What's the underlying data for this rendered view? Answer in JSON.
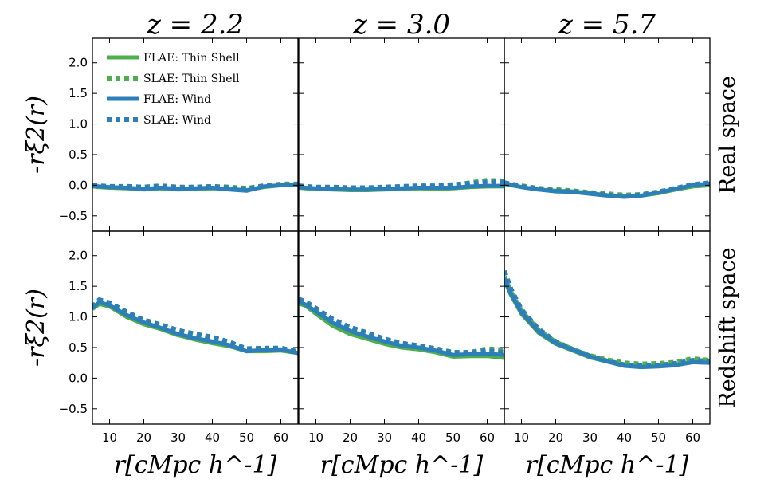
{
  "chart_data": {
    "type": "line",
    "layout": "3 columns x 2 rows, shared axes",
    "column_titles": [
      "z = 2.2",
      "z = 3.0",
      "z = 5.7"
    ],
    "row_labels": [
      "Real space",
      "Redshift space"
    ],
    "xlabel": "r[cMpc h^-1]",
    "ylabel": "-rξ2(r)",
    "xlim": [
      5,
      65
    ],
    "ylim": [
      -0.75,
      2.4
    ],
    "xticks": [
      10,
      20,
      30,
      40,
      50,
      60
    ],
    "xtick_labels": [
      "10",
      "20",
      "30",
      "40",
      "50",
      "60"
    ],
    "yticks": [
      -0.5,
      0.0,
      0.5,
      1.0,
      1.5,
      2.0
    ],
    "ytick_labels": [
      "−0.5",
      "0.0",
      "0.5",
      "1.0",
      "1.5",
      "2.0"
    ],
    "x": [
      5,
      7,
      10,
      15,
      20,
      25,
      30,
      35,
      40,
      45,
      50,
      55,
      60,
      65
    ],
    "legend": [
      {
        "label": "FLAE: Thin Shell",
        "color": "#4daf4a",
        "style": "solid"
      },
      {
        "label": "SLAE: Thin Shell",
        "color": "#4daf4a",
        "style": "dotted"
      },
      {
        "label": "FLAE: Wind",
        "color": "#2c7fb8",
        "style": "solid"
      },
      {
        "label": "SLAE: Wind",
        "color": "#2c7fb8",
        "style": "dotted"
      }
    ],
    "panels": [
      {
        "col": 0,
        "row": 0,
        "legend": true,
        "series": [
          {
            "name": "FLAE: Thin Shell",
            "values": [
              -0.02,
              -0.03,
              -0.04,
              -0.05,
              -0.07,
              -0.05,
              -0.07,
              -0.06,
              -0.05,
              -0.06,
              -0.08,
              -0.03,
              0.0,
              0.01
            ]
          },
          {
            "name": "SLAE: Thin Shell",
            "values": [
              -0.01,
              -0.02,
              -0.03,
              -0.02,
              -0.03,
              -0.02,
              -0.04,
              -0.03,
              -0.02,
              -0.03,
              -0.05,
              -0.01,
              0.02,
              0.02
            ]
          },
          {
            "name": "FLAE: Wind",
            "values": [
              -0.01,
              -0.02,
              -0.03,
              -0.04,
              -0.06,
              -0.04,
              -0.06,
              -0.05,
              -0.04,
              -0.07,
              -0.09,
              -0.02,
              0.0,
              0.0
            ]
          },
          {
            "name": "SLAE: Wind",
            "values": [
              0.0,
              -0.01,
              -0.02,
              -0.02,
              -0.03,
              -0.01,
              -0.03,
              -0.03,
              -0.02,
              -0.04,
              -0.06,
              -0.01,
              0.01,
              0.01
            ]
          }
        ]
      },
      {
        "col": 1,
        "row": 0,
        "legend": false,
        "series": [
          {
            "name": "FLAE: Thin Shell",
            "values": [
              -0.04,
              -0.05,
              -0.06,
              -0.07,
              -0.08,
              -0.08,
              -0.07,
              -0.06,
              -0.05,
              -0.06,
              -0.05,
              -0.03,
              -0.02,
              -0.02
            ]
          },
          {
            "name": "SLAE: Thin Shell",
            "values": [
              -0.02,
              -0.03,
              -0.04,
              -0.05,
              -0.05,
              -0.05,
              -0.04,
              -0.03,
              -0.02,
              -0.02,
              0.0,
              0.04,
              0.08,
              0.07
            ]
          },
          {
            "name": "FLAE: Wind",
            "values": [
              -0.03,
              -0.04,
              -0.05,
              -0.06,
              -0.07,
              -0.07,
              -0.06,
              -0.05,
              -0.04,
              -0.04,
              -0.04,
              -0.02,
              -0.01,
              -0.01
            ]
          },
          {
            "name": "SLAE: Wind",
            "values": [
              -0.01,
              -0.02,
              -0.03,
              -0.03,
              -0.04,
              -0.04,
              -0.03,
              -0.02,
              -0.01,
              -0.01,
              0.01,
              0.03,
              0.05,
              0.05
            ]
          }
        ]
      },
      {
        "col": 2,
        "row": 0,
        "legend": false,
        "series": [
          {
            "name": "FLAE: Thin Shell",
            "values": [
              0.02,
              0.0,
              -0.03,
              -0.07,
              -0.09,
              -0.1,
              -0.13,
              -0.16,
              -0.18,
              -0.17,
              -0.13,
              -0.07,
              -0.02,
              0.0
            ]
          },
          {
            "name": "SLAE: Thin Shell",
            "values": [
              0.03,
              0.02,
              -0.01,
              -0.05,
              -0.07,
              -0.09,
              -0.12,
              -0.14,
              -0.16,
              -0.15,
              -0.11,
              -0.05,
              0.0,
              0.02
            ]
          },
          {
            "name": "FLAE: Wind",
            "values": [
              0.03,
              0.01,
              -0.03,
              -0.07,
              -0.1,
              -0.11,
              -0.14,
              -0.17,
              -0.19,
              -0.17,
              -0.12,
              -0.06,
              0.0,
              0.03
            ]
          },
          {
            "name": "SLAE: Wind",
            "values": [
              0.04,
              0.02,
              -0.02,
              -0.06,
              -0.09,
              -0.1,
              -0.13,
              -0.16,
              -0.18,
              -0.16,
              -0.11,
              -0.05,
              0.01,
              0.04
            ]
          }
        ]
      },
      {
        "col": 0,
        "row": 1,
        "legend": false,
        "series": [
          {
            "name": "FLAE: Thin Shell",
            "values": [
              1.13,
              1.21,
              1.17,
              1.0,
              0.88,
              0.8,
              0.7,
              0.63,
              0.57,
              0.52,
              0.44,
              0.44,
              0.45,
              0.41
            ]
          },
          {
            "name": "SLAE: Thin Shell",
            "values": [
              1.15,
              1.27,
              1.22,
              1.06,
              0.94,
              0.86,
              0.78,
              0.72,
              0.66,
              0.58,
              0.47,
              0.48,
              0.49,
              0.43
            ]
          },
          {
            "name": "FLAE: Wind",
            "values": [
              1.14,
              1.24,
              1.19,
              1.03,
              0.91,
              0.82,
              0.72,
              0.65,
              0.6,
              0.54,
              0.44,
              0.46,
              0.47,
              0.41
            ]
          },
          {
            "name": "SLAE: Wind",
            "values": [
              1.16,
              1.28,
              1.23,
              1.08,
              0.95,
              0.87,
              0.78,
              0.72,
              0.67,
              0.59,
              0.48,
              0.49,
              0.49,
              0.43
            ]
          }
        ]
      },
      {
        "col": 1,
        "row": 1,
        "legend": false,
        "series": [
          {
            "name": "FLAE: Thin Shell",
            "values": [
              1.22,
              1.18,
              1.05,
              0.85,
              0.72,
              0.64,
              0.56,
              0.5,
              0.47,
              0.42,
              0.35,
              0.36,
              0.36,
              0.33
            ]
          },
          {
            "name": "SLAE: Thin Shell",
            "values": [
              1.27,
              1.23,
              1.12,
              0.93,
              0.81,
              0.72,
              0.63,
              0.56,
              0.53,
              0.48,
              0.42,
              0.42,
              0.48,
              0.46
            ]
          },
          {
            "name": "FLAE: Wind",
            "values": [
              1.25,
              1.2,
              1.09,
              0.9,
              0.77,
              0.68,
              0.6,
              0.53,
              0.5,
              0.45,
              0.38,
              0.39,
              0.4,
              0.38
            ]
          },
          {
            "name": "SLAE: Wind",
            "values": [
              1.29,
              1.25,
              1.14,
              0.96,
              0.83,
              0.74,
              0.64,
              0.57,
              0.53,
              0.48,
              0.42,
              0.42,
              0.45,
              0.42
            ]
          }
        ]
      },
      {
        "col": 2,
        "row": 1,
        "legend": false,
        "series": [
          {
            "name": "FLAE: Thin Shell",
            "values": [
              1.6,
              1.35,
              1.05,
              0.74,
              0.56,
              0.45,
              0.34,
              0.27,
              0.21,
              0.19,
              0.2,
              0.22,
              0.26,
              0.25
            ]
          },
          {
            "name": "SLAE: Thin Shell",
            "values": [
              1.66,
              1.4,
              1.1,
              0.78,
              0.59,
              0.47,
              0.37,
              0.3,
              0.25,
              0.23,
              0.24,
              0.26,
              0.32,
              0.29
            ]
          },
          {
            "name": "FLAE: Wind",
            "values": [
              1.63,
              1.37,
              1.07,
              0.76,
              0.57,
              0.46,
              0.35,
              0.27,
              0.2,
              0.18,
              0.19,
              0.21,
              0.26,
              0.25
            ]
          },
          {
            "name": "SLAE: Wind",
            "values": [
              1.75,
              1.45,
              1.12,
              0.8,
              0.6,
              0.47,
              0.36,
              0.28,
              0.22,
              0.2,
              0.21,
              0.24,
              0.29,
              0.28
            ]
          }
        ]
      }
    ]
  }
}
